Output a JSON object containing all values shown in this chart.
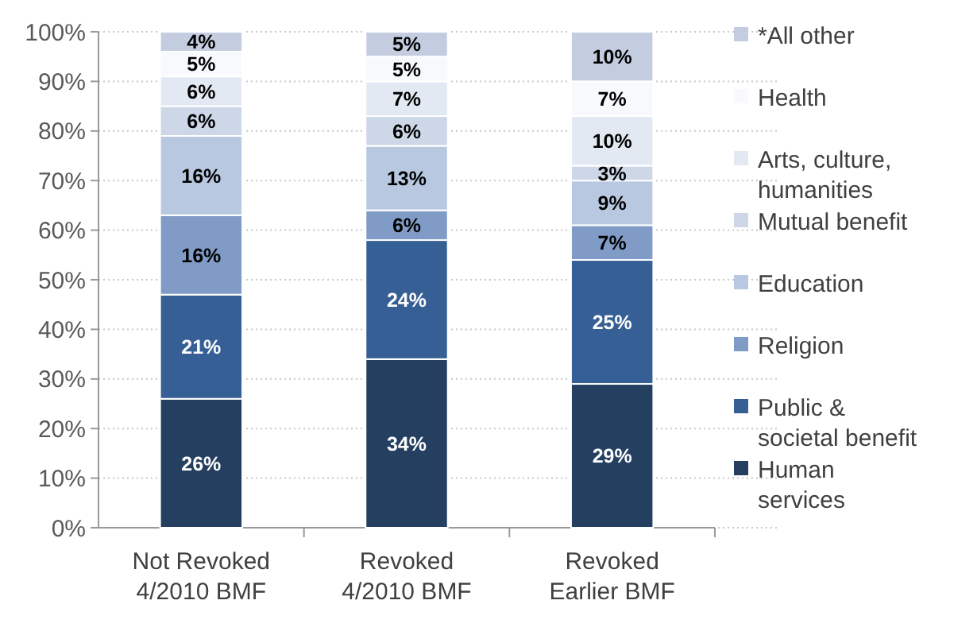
{
  "chart_data": {
    "type": "bar",
    "stacked": true,
    "categories": [
      "Not Revoked 4/2010 BMF",
      "Revoked 4/2010 BMF",
      "Revoked Earlier BMF"
    ],
    "series": [
      {
        "name": "Human services",
        "color": "#243f60",
        "values": [
          26,
          34,
          29
        ],
        "value_labels": [
          "26%",
          "34%",
          "29%"
        ]
      },
      {
        "name": "Public & societal benefit",
        "color": "#355f95",
        "values": [
          21,
          24,
          25
        ],
        "value_labels": [
          "21%",
          "24%",
          "25%"
        ]
      },
      {
        "name": "Religion",
        "color": "#7f9bc6",
        "values": [
          16,
          6,
          7
        ],
        "value_labels": [
          "16%",
          "6%",
          "7%"
        ]
      },
      {
        "name": "Education",
        "color": "#b7c8e0",
        "values": [
          16,
          13,
          9
        ],
        "value_labels": [
          "16%",
          "13%",
          "9%"
        ]
      },
      {
        "name": "Mutual benefit",
        "color": "#cdd7e8",
        "values": [
          6,
          6,
          3
        ],
        "value_labels": [
          "6%",
          "6%",
          "3%"
        ]
      },
      {
        "name": "Arts, culture, humanities",
        "color": "#e3e9f3",
        "values": [
          6,
          7,
          10
        ],
        "value_labels": [
          "6%",
          "7%",
          "10%"
        ]
      },
      {
        "name": "Health",
        "color": "#f7f9fc",
        "values": [
          5,
          5,
          7
        ],
        "value_labels": [
          "5%",
          "5%",
          "7%"
        ]
      },
      {
        "name": "*All other",
        "color": "#c4cde0",
        "values": [
          4,
          5,
          10
        ],
        "value_labels": [
          "4%",
          "5%",
          "10%"
        ]
      }
    ],
    "ylim": [
      0,
      100
    ],
    "yticks": [
      {
        "value": 0,
        "label": "0%"
      },
      {
        "value": 10,
        "label": "10%"
      },
      {
        "value": 20,
        "label": "20%"
      },
      {
        "value": 30,
        "label": "30%"
      },
      {
        "value": 40,
        "label": "40%"
      },
      {
        "value": 50,
        "label": "50%"
      },
      {
        "value": 60,
        "label": "60%"
      },
      {
        "value": 70,
        "label": "70%"
      },
      {
        "value": 80,
        "label": "80%"
      },
      {
        "value": 90,
        "label": "90%"
      },
      {
        "value": 100,
        "label": "100%"
      }
    ],
    "grid": "y",
    "legend": "right"
  }
}
